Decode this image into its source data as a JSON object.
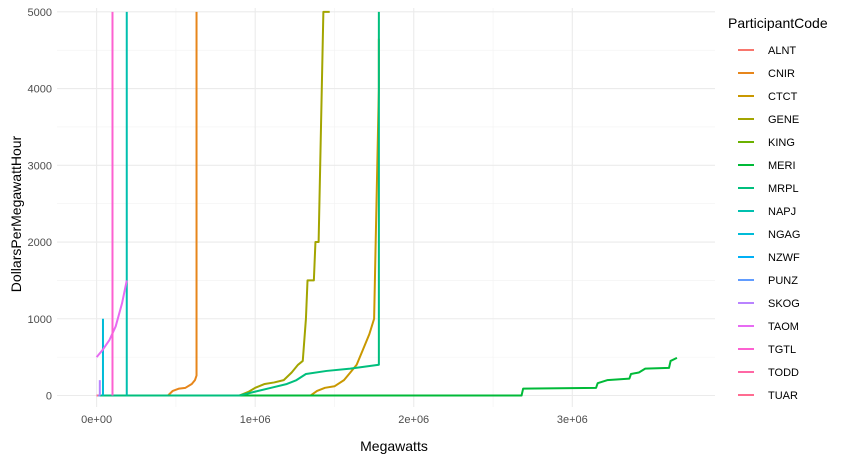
{
  "chart_data": {
    "type": "line",
    "xlabel": "Megawatts",
    "ylabel": "DollarsPerMegawattHour",
    "xlim": [
      -250000,
      3900000
    ],
    "ylim": [
      -150,
      5050
    ],
    "x_ticks": [
      0,
      1000000,
      2000000,
      3000000
    ],
    "x_tick_labels": [
      "0e+00",
      "1e+06",
      "2e+06",
      "3e+06"
    ],
    "y_ticks": [
      0,
      1000,
      2000,
      3000,
      4000,
      5000
    ],
    "y_tick_labels": [
      "0",
      "1000",
      "2000",
      "3000",
      "4000",
      "5000"
    ],
    "grid": true,
    "legend_title": "ParticipantCode",
    "legend_position": "right",
    "series": [
      {
        "name": "ALNT",
        "color": "#F8766D",
        "points": [
          [
            0,
            0
          ],
          [
            10000,
            0
          ]
        ]
      },
      {
        "name": "CNIR",
        "color": "#E7861B",
        "points": [
          [
            0,
            0
          ],
          [
            450000,
            0
          ],
          [
            480000,
            60
          ],
          [
            520000,
            90
          ],
          [
            560000,
            100
          ],
          [
            600000,
            150
          ],
          [
            620000,
            200
          ],
          [
            630000,
            260
          ],
          [
            630000,
            5000
          ]
        ]
      },
      {
        "name": "CTCT",
        "color": "#C99800",
        "points": [
          [
            0,
            0
          ],
          [
            1350000,
            0
          ],
          [
            1390000,
            60
          ],
          [
            1440000,
            100
          ],
          [
            1500000,
            120
          ],
          [
            1560000,
            200
          ],
          [
            1600000,
            300
          ],
          [
            1640000,
            400
          ],
          [
            1680000,
            600
          ],
          [
            1720000,
            800
          ],
          [
            1750000,
            1000
          ],
          [
            1760000,
            2000
          ],
          [
            1770000,
            3000
          ],
          [
            1780000,
            4000
          ],
          [
            1780000,
            4650
          ]
        ]
      },
      {
        "name": "GENE",
        "color": "#A3A500",
        "points": [
          [
            0,
            0
          ],
          [
            900000,
            0
          ],
          [
            960000,
            50
          ],
          [
            1000000,
            100
          ],
          [
            1060000,
            150
          ],
          [
            1120000,
            170
          ],
          [
            1180000,
            200
          ],
          [
            1230000,
            300
          ],
          [
            1270000,
            400
          ],
          [
            1300000,
            450
          ],
          [
            1320000,
            1000
          ],
          [
            1330000,
            1500
          ],
          [
            1370000,
            1500
          ],
          [
            1380000,
            2000
          ],
          [
            1400000,
            2000
          ],
          [
            1410000,
            3000
          ],
          [
            1420000,
            4000
          ],
          [
            1430000,
            5000
          ],
          [
            1470000,
            5000
          ]
        ]
      },
      {
        "name": "KING",
        "color": "#6BB100",
        "points": [
          [
            0,
            0
          ],
          [
            1500000,
            0
          ]
        ]
      },
      {
        "name": "MERI",
        "color": "#00BA38",
        "points": [
          [
            0,
            0
          ],
          [
            2680000,
            0
          ],
          [
            2690000,
            90
          ],
          [
            3150000,
            100
          ],
          [
            3160000,
            160
          ],
          [
            3220000,
            200
          ],
          [
            3360000,
            220
          ],
          [
            3370000,
            280
          ],
          [
            3420000,
            300
          ],
          [
            3460000,
            350
          ],
          [
            3610000,
            360
          ],
          [
            3620000,
            450
          ],
          [
            3650000,
            480
          ],
          [
            3660000,
            490
          ]
        ]
      },
      {
        "name": "MRPL",
        "color": "#00BF7D",
        "points": [
          [
            0,
            0
          ],
          [
            900000,
            0
          ],
          [
            1000000,
            50
          ],
          [
            1100000,
            100
          ],
          [
            1200000,
            150
          ],
          [
            1260000,
            200
          ],
          [
            1320000,
            280
          ],
          [
            1450000,
            320
          ],
          [
            1600000,
            350
          ],
          [
            1780000,
            400
          ],
          [
            1780000,
            5000
          ]
        ]
      },
      {
        "name": "NAPJ",
        "color": "#00C0AF",
        "points": [
          [
            190000,
            0
          ],
          [
            190000,
            5000
          ]
        ]
      },
      {
        "name": "NGAG",
        "color": "#00BCD8",
        "points": [
          [
            40000,
            0
          ],
          [
            40000,
            1000
          ]
        ]
      },
      {
        "name": "NZWF",
        "color": "#00B0F6",
        "points": [
          [
            0,
            0
          ],
          [
            20000,
            0
          ]
        ]
      },
      {
        "name": "PUNZ",
        "color": "#619CFF",
        "points": [
          [
            0,
            0
          ],
          [
            20000,
            0
          ]
        ]
      },
      {
        "name": "SKOG",
        "color": "#B983FF",
        "points": [
          [
            20000,
            0
          ],
          [
            20000,
            200
          ]
        ]
      },
      {
        "name": "TAOM",
        "color": "#E76BF3",
        "points": [
          [
            0,
            500
          ],
          [
            40000,
            600
          ],
          [
            80000,
            720
          ],
          [
            120000,
            900
          ],
          [
            160000,
            1200
          ],
          [
            190000,
            1500
          ]
        ]
      },
      {
        "name": "TGTL",
        "color": "#FD61D1",
        "points": [
          [
            100000,
            0
          ],
          [
            100000,
            5000
          ]
        ]
      },
      {
        "name": "TODD",
        "color": "#FF67A4",
        "points": [
          [
            0,
            0
          ],
          [
            10000,
            0
          ]
        ]
      },
      {
        "name": "TUAR",
        "color": "#FF6C91",
        "points": [
          [
            0,
            0
          ],
          [
            10000,
            0
          ]
        ]
      }
    ]
  }
}
